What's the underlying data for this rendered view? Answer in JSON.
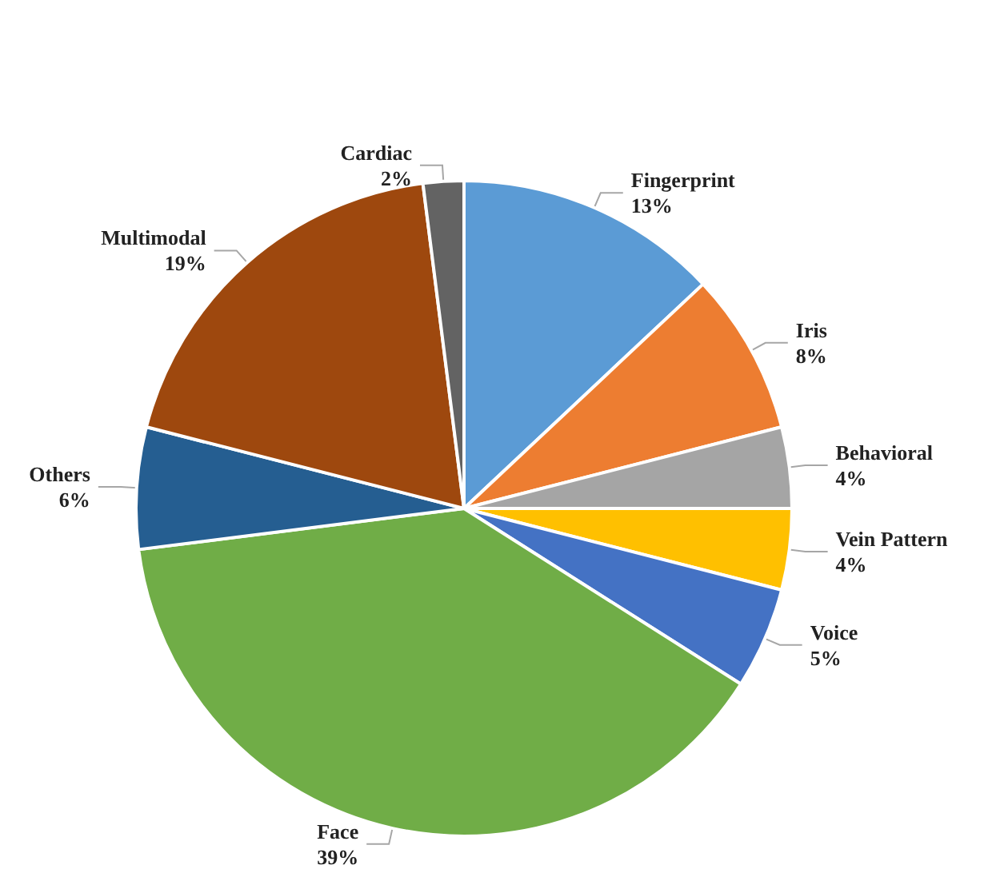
{
  "chart_data": {
    "type": "pie",
    "categories": [
      "Fingerprint",
      "Iris",
      "Behavioral",
      "Vein Pattern",
      "Voice",
      "Face",
      "Others",
      "Multimodal",
      "Cardiac"
    ],
    "values": [
      13,
      8,
      4,
      4,
      5,
      39,
      6,
      19,
      2
    ],
    "value_labels": [
      "13%",
      "8%",
      "4%",
      "4%",
      "5%",
      "39%",
      "6%",
      "19%",
      "2%"
    ],
    "colors": [
      "#5b9bd5",
      "#ed7d31",
      "#a5a5a5",
      "#ffc000",
      "#4472c4",
      "#70ad47",
      "#255e91",
      "#9e480e",
      "#636363"
    ],
    "legend": false
  }
}
